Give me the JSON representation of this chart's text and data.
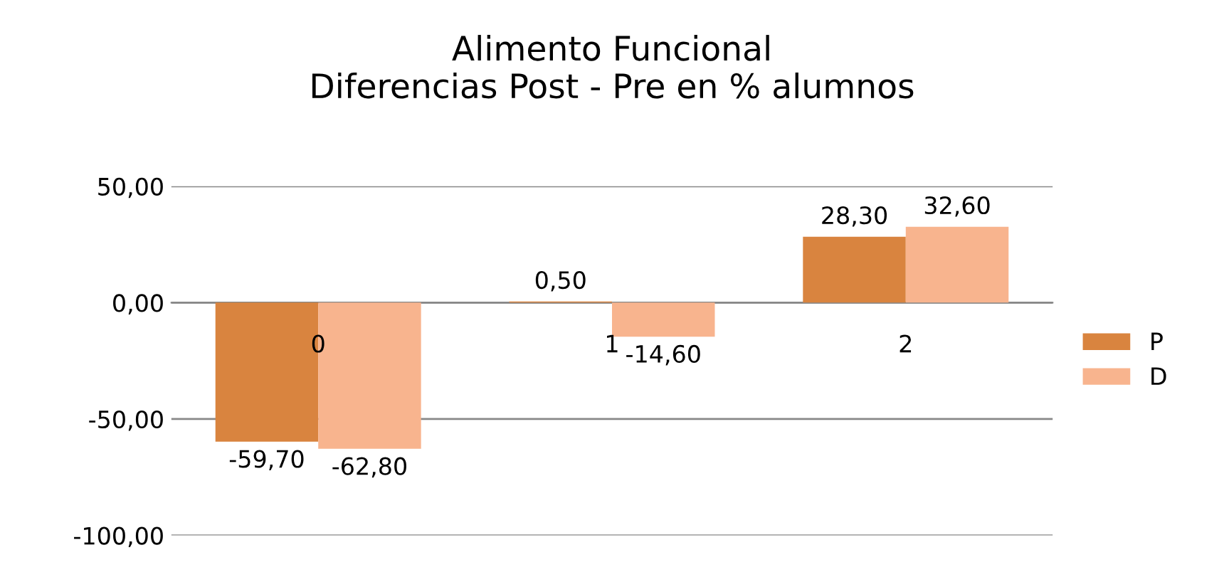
{
  "chart_data": {
    "type": "bar",
    "title": "Alimento Funcional\nDiferencias Post - Pre en % alumnos",
    "categories": [
      "0",
      "1",
      "2"
    ],
    "series": [
      {
        "name": "P",
        "color": "#d9843f",
        "values": [
          -59.7,
          0.5,
          28.3
        ],
        "value_labels": [
          "-59,70",
          "0,50",
          "28,30"
        ]
      },
      {
        "name": "D",
        "color": "#f8b48e",
        "values": [
          -62.8,
          -14.6,
          32.6
        ],
        "value_labels": [
          "-62,80",
          "-14,60",
          "32,60"
        ]
      }
    ],
    "ylim": [
      -100,
      50
    ],
    "yticks": [
      {
        "value": 50,
        "label": "50,00"
      },
      {
        "value": 0,
        "label": "0,00"
      },
      {
        "value": -50,
        "label": "-50,00"
      },
      {
        "value": -100,
        "label": "-100,00"
      }
    ],
    "grid": "y",
    "legend": "right"
  }
}
